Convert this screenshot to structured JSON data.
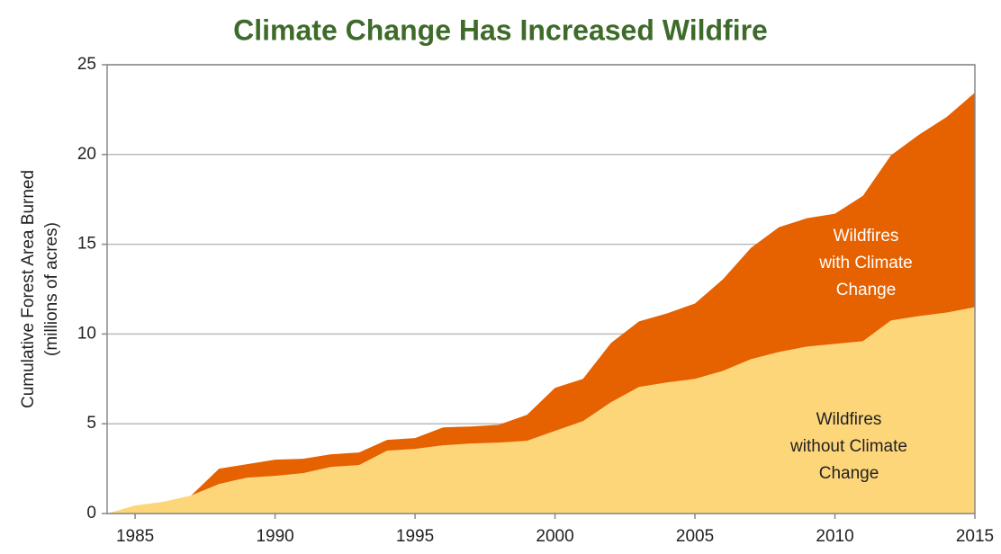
{
  "chart_data": {
    "type": "stacked_area",
    "title": "Climate Change Has Increased Wildfire",
    "y_label": [
      "Cumulative Forest Area Burned",
      "(millions of acres)"
    ],
    "x": [
      1984,
      1985,
      1986,
      1987,
      1988,
      1989,
      1990,
      1991,
      1992,
      1993,
      1994,
      1995,
      1996,
      1997,
      1998,
      1999,
      2000,
      2001,
      2002,
      2003,
      2004,
      2005,
      2006,
      2007,
      2008,
      2009,
      2010,
      2011,
      2012,
      2013,
      2014,
      2015
    ],
    "series": [
      {
        "name": "Wildfires\nwithout Climate Change",
        "color": "#fed67a",
        "label_color": "#222222",
        "values": [
          0,
          0.45,
          0.65,
          1.0,
          1.65,
          2.0,
          2.1,
          2.25,
          2.6,
          2.7,
          3.5,
          3.6,
          3.8,
          3.9,
          3.95,
          4.05,
          4.6,
          5.15,
          6.2,
          7.05,
          7.3,
          7.5,
          7.95,
          8.6,
          9.0,
          9.3,
          9.45,
          9.6,
          10.75,
          11.0,
          11.2,
          11.5
        ]
      },
      {
        "name": "Wildfires\nwith Climate Change",
        "color": "#e66100",
        "label_color": "#ffffff",
        "values": [
          0,
          0,
          0,
          0,
          0.85,
          0.75,
          0.9,
          0.8,
          0.7,
          0.7,
          0.6,
          0.6,
          1.0,
          0.95,
          1.0,
          1.45,
          2.4,
          2.35,
          3.3,
          3.65,
          3.85,
          4.2,
          5.1,
          6.2,
          6.95,
          7.15,
          7.25,
          8.1,
          9.2,
          10.1,
          10.9,
          11.95
        ]
      }
    ],
    "xlim": [
      1984,
      2015
    ],
    "xticks": [
      1985,
      1990,
      1995,
      2000,
      2005,
      2010,
      2015
    ],
    "ylim": [
      0,
      25
    ],
    "yticks": [
      0,
      5,
      10,
      15,
      20,
      25
    ],
    "grid": true
  }
}
